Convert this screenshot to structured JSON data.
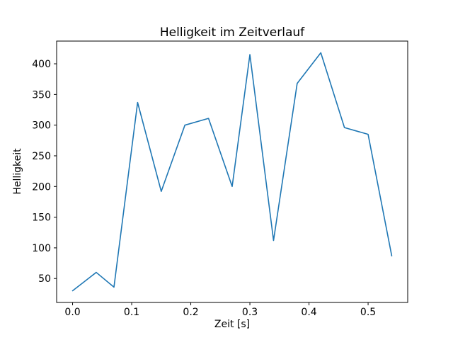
{
  "chart_data": {
    "type": "line",
    "title": "Helligkeit im Zeitverlauf",
    "xlabel": "Zeit [s]",
    "ylabel": "Helligkeit",
    "x": [
      0.0,
      0.04,
      0.07,
      0.11,
      0.15,
      0.19,
      0.23,
      0.27,
      0.3,
      0.34,
      0.38,
      0.42,
      0.46,
      0.5,
      0.54
    ],
    "y": [
      30,
      60,
      36,
      337,
      192,
      300,
      311,
      200,
      415,
      112,
      368,
      418,
      296,
      285,
      87
    ],
    "xticks": [
      0.0,
      0.1,
      0.2,
      0.3,
      0.4,
      0.5
    ],
    "xtick_labels": [
      "0.0",
      "0.1",
      "0.2",
      "0.3",
      "0.4",
      "0.5"
    ],
    "yticks": [
      50,
      100,
      150,
      200,
      250,
      300,
      350,
      400
    ],
    "ytick_labels": [
      "50",
      "100",
      "150",
      "200",
      "250",
      "300",
      "350",
      "400"
    ],
    "xlim": [
      -0.027,
      0.567
    ],
    "ylim": [
      11,
      437
    ],
    "grid": false,
    "legend": "none",
    "line_color": "#1f77b4",
    "axis_color": "#000000",
    "background_color": "#ffffff"
  }
}
